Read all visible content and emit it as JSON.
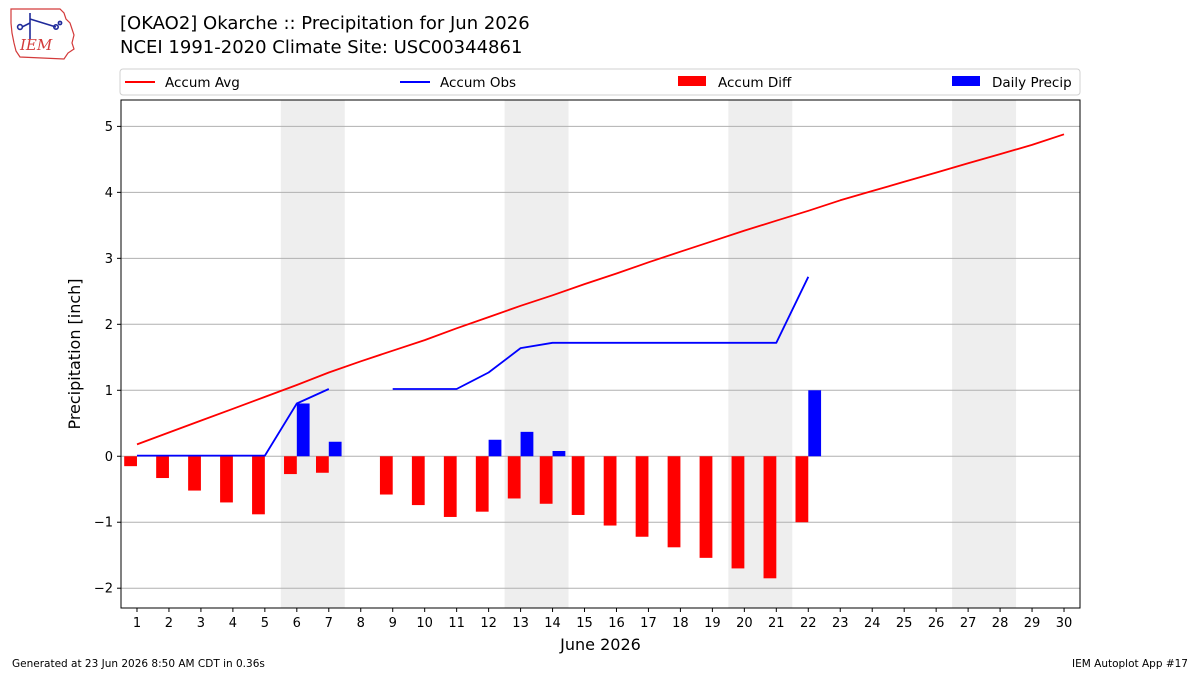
{
  "header": {
    "logo_text": "IEM",
    "title_line1": "[OKAO2] Okarche :: Precipitation for Jun 2026",
    "title_line2": "NCEI 1991-2020 Climate Site: USC00344861"
  },
  "footer": {
    "generated": "Generated at 23 Jun 2026 8:50 AM CDT in 0.36s",
    "app": "IEM Autoplot App #17"
  },
  "colors": {
    "avg": "#ff0000",
    "obs": "#0000ff",
    "diff": "#ff0000",
    "daily": "#0000ff",
    "weekend": "#eeeeee",
    "grid": "#b0b0b0"
  },
  "chart_data": {
    "type": "bar",
    "xlabel": "June 2026",
    "ylabel": "Precipitation [inch]",
    "xlim": [
      0.5,
      30.5
    ],
    "ylim": [
      -2.3,
      5.4
    ],
    "yticks": [
      -2,
      -1,
      0,
      1,
      2,
      3,
      4,
      5
    ],
    "ytick_labels": [
      "−2",
      "−1",
      "0",
      "1",
      "2",
      "3",
      "4",
      "5"
    ],
    "grid": true,
    "legend_position": "top",
    "legend": [
      "Accum Avg",
      "Accum Obs",
      "Accum Diff",
      "Daily Precip"
    ],
    "x": [
      1,
      2,
      3,
      4,
      5,
      6,
      7,
      8,
      9,
      10,
      11,
      12,
      13,
      14,
      15,
      16,
      17,
      18,
      19,
      20,
      21,
      22,
      23,
      24,
      25,
      26,
      27,
      28,
      29,
      30
    ],
    "x_tick_labels": [
      "1",
      "2",
      "3",
      "4",
      "5",
      "6",
      "7",
      "8",
      "9",
      "10",
      "11",
      "12",
      "13",
      "14",
      "15",
      "16",
      "17",
      "18",
      "19",
      "20",
      "21",
      "22",
      "23",
      "24",
      "25",
      "26",
      "27",
      "28",
      "29",
      "30"
    ],
    "weekend_spans": [
      [
        5.5,
        7.5
      ],
      [
        12.5,
        14.5
      ],
      [
        19.5,
        21.5
      ],
      [
        26.5,
        28.5
      ]
    ],
    "series": [
      {
        "name": "Accum Avg",
        "type": "line",
        "x": [
          1,
          2,
          3,
          4,
          5,
          6,
          7,
          8,
          9,
          10,
          11,
          12,
          13,
          14,
          15,
          16,
          17,
          18,
          19,
          20,
          21,
          22,
          23,
          24,
          25,
          26,
          27,
          28,
          29,
          30
        ],
        "values": [
          0.18,
          0.36,
          0.54,
          0.72,
          0.9,
          1.08,
          1.27,
          1.44,
          1.6,
          1.76,
          1.94,
          2.11,
          2.28,
          2.44,
          2.61,
          2.77,
          2.94,
          3.1,
          3.26,
          3.42,
          3.57,
          3.72,
          3.88,
          4.02,
          4.16,
          4.3,
          4.44,
          4.58,
          4.72,
          4.88
        ]
      },
      {
        "name": "Accum Obs",
        "type": "line",
        "x": [
          1,
          2,
          3,
          4,
          5,
          6,
          7,
          8,
          9,
          10,
          11,
          12,
          13,
          14,
          15,
          16,
          17,
          18,
          19,
          20,
          21,
          22
        ],
        "values": [
          0.01,
          0.01,
          0.01,
          0.01,
          0.01,
          0.8,
          1.02,
          null,
          1.02,
          1.02,
          1.02,
          1.27,
          1.64,
          1.72,
          1.72,
          1.72,
          1.72,
          1.72,
          1.72,
          1.72,
          1.72,
          2.72
        ]
      },
      {
        "name": "Accum Diff",
        "type": "bar",
        "x": [
          1,
          2,
          3,
          4,
          5,
          6,
          7,
          9,
          10,
          11,
          12,
          13,
          14,
          15,
          16,
          17,
          18,
          19,
          20,
          21,
          22
        ],
        "values": [
          -0.15,
          -0.33,
          -0.52,
          -0.7,
          -0.88,
          -0.27,
          -0.25,
          -0.58,
          -0.74,
          -0.92,
          -0.84,
          -0.64,
          -0.72,
          -0.89,
          -1.05,
          -1.22,
          -1.38,
          -1.54,
          -1.7,
          -1.85,
          -1.0
        ]
      },
      {
        "name": "Daily Precip",
        "type": "bar",
        "x": [
          6,
          7,
          12,
          13,
          14,
          22
        ],
        "values": [
          0.8,
          0.22,
          0.25,
          0.37,
          0.08,
          1.0
        ]
      }
    ]
  }
}
